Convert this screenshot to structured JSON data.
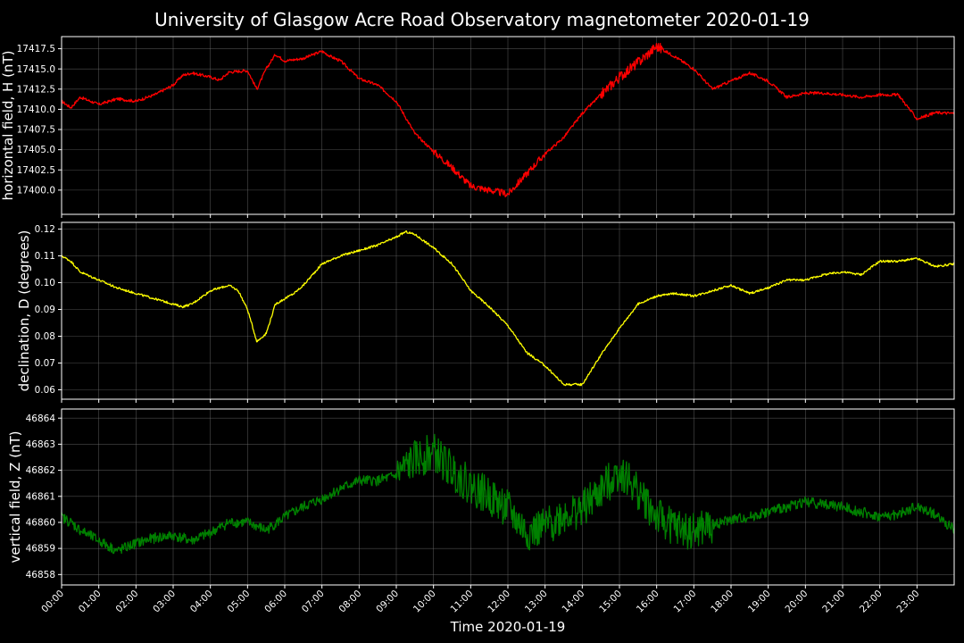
{
  "chart_data": {
    "type": "line",
    "title": "University of Glasgow Acre Road Observatory magnetometer 2020-01-19",
    "xlabel": "Time 2020-01-19",
    "grid": true,
    "x_ticks": [
      "00:00",
      "01:00",
      "02:00",
      "03:00",
      "04:00",
      "05:00",
      "06:00",
      "07:00",
      "08:00",
      "09:00",
      "10:00",
      "11:00",
      "12:00",
      "13:00",
      "14:00",
      "15:00",
      "16:00",
      "17:00",
      "18:00",
      "19:00",
      "20:00",
      "21:00",
      "22:00",
      "23:00"
    ],
    "xlim": [
      0,
      24
    ],
    "panels": [
      {
        "ylabel": "horizontal field, H (nT)",
        "color": "#ff0000",
        "ylim": [
          17397.0,
          17419.0
        ],
        "y_ticks": [
          "17400.0",
          "17402.5",
          "17405.0",
          "17407.5",
          "17410.0",
          "17412.5",
          "17415.0",
          "17417.5"
        ],
        "x": [
          0,
          0.25,
          0.5,
          1,
          1.5,
          2,
          2.5,
          3,
          3.25,
          3.5,
          4,
          4.25,
          4.5,
          5,
          5.25,
          5.5,
          5.75,
          6,
          6.5,
          7,
          7.25,
          7.5,
          8,
          8.5,
          9,
          9.5,
          10,
          10.5,
          11,
          11.5,
          12,
          12.5,
          13,
          13.5,
          14,
          14.5,
          15,
          15.5,
          15.75,
          16,
          16.5,
          17,
          17.5,
          18,
          18.5,
          19,
          19.5,
          20,
          20.5,
          21,
          21.5,
          22,
          22.5,
          23,
          23.5,
          24
        ],
        "y": [
          17411,
          17410.2,
          17411.5,
          17410.6,
          17411.3,
          17411,
          17411.8,
          17413,
          17414.2,
          17414.5,
          17414,
          17413.6,
          17414.6,
          17414.8,
          17412.5,
          17415,
          17416.8,
          17416,
          17416.3,
          17417.2,
          17416.5,
          17416,
          17413.8,
          17413,
          17411,
          17407,
          17404.8,
          17402.8,
          17400.5,
          17400,
          17399.5,
          17402,
          17404.5,
          17406.5,
          17409.5,
          17411.8,
          17414,
          17415.8,
          17416.8,
          17417.8,
          17416.5,
          17415,
          17412.5,
          17413.5,
          17414.5,
          17413.5,
          17411.5,
          17412,
          17412,
          17411.8,
          17411.5,
          17411.8,
          17411.8,
          17408.8,
          17409.6,
          17409.5
        ]
      },
      {
        "ylabel": "declination, D (degrees)",
        "color": "#ffff00",
        "ylim": [
          0.0565,
          0.1225
        ],
        "y_ticks": [
          "0.06",
          "0.07",
          "0.08",
          "0.09",
          "0.10",
          "0.11",
          "0.12"
        ],
        "x": [
          0,
          0.25,
          0.5,
          1,
          1.5,
          2,
          2.5,
          3,
          3.25,
          3.5,
          4,
          4.5,
          4.75,
          5,
          5.25,
          5.5,
          5.75,
          6,
          6.25,
          6.5,
          7,
          7.5,
          8,
          8.5,
          9,
          9.25,
          9.5,
          10,
          10.5,
          11,
          11.5,
          12,
          12.5,
          13,
          13.5,
          14,
          14.5,
          15,
          15.5,
          16,
          16.5,
          17,
          17.5,
          18,
          18.5,
          19,
          19.5,
          20,
          20.5,
          21,
          21.5,
          22,
          22.5,
          23,
          23.5,
          24
        ],
        "y": [
          0.11,
          0.108,
          0.104,
          0.101,
          0.098,
          0.096,
          0.094,
          0.092,
          0.091,
          0.092,
          0.097,
          0.099,
          0.097,
          0.09,
          0.078,
          0.081,
          0.092,
          0.094,
          0.096,
          0.099,
          0.107,
          0.11,
          0.112,
          0.114,
          0.117,
          0.119,
          0.118,
          0.113,
          0.107,
          0.097,
          0.091,
          0.084,
          0.074,
          0.069,
          0.062,
          0.062,
          0.073,
          0.083,
          0.092,
          0.095,
          0.096,
          0.095,
          0.097,
          0.099,
          0.096,
          0.098,
          0.101,
          0.101,
          0.103,
          0.104,
          0.103,
          0.108,
          0.108,
          0.109,
          0.106,
          0.107
        ]
      },
      {
        "ylabel": "vertical field, Z (nT)",
        "color": "#008000",
        "ylim": [
          46857.6,
          46864.35
        ],
        "y_ticks": [
          "46858",
          "46859",
          "46860",
          "46861",
          "46862",
          "46863",
          "46864"
        ],
        "x": [
          0,
          0.25,
          0.5,
          1,
          1.5,
          2,
          2.5,
          3,
          3.5,
          4,
          4.5,
          5,
          5.5,
          6,
          6.5,
          7,
          7.5,
          8,
          8.5,
          9,
          9.5,
          10,
          10.5,
          11,
          11.5,
          12,
          12.5,
          13,
          13.5,
          14,
          14.5,
          15,
          15.5,
          16,
          16.5,
          17,
          17.5,
          18,
          18.5,
          19,
          19.5,
          20,
          20.5,
          21,
          21.5,
          22,
          22.5,
          23,
          23.5,
          24
        ],
        "y": [
          46860.2,
          46860,
          46859.7,
          46859.3,
          46858.9,
          46859.2,
          46859.4,
          46859.5,
          46859.3,
          46859.6,
          46860,
          46860,
          46859.7,
          46860.2,
          46860.6,
          46860.9,
          46861.3,
          46861.6,
          46861.6,
          46861.8,
          46862.4,
          46862.7,
          46862.0,
          46861.4,
          46861.0,
          46860.5,
          46859.6,
          46859.8,
          46860.3,
          46860.5,
          46861.2,
          46862.0,
          46861.2,
          46860.2,
          46859.8,
          46859.6,
          46859.9,
          46860.1,
          46860.2,
          46860.4,
          46860.6,
          46860.8,
          46860.7,
          46860.6,
          46860.4,
          46860.2,
          46860.3,
          46860.6,
          46860.3,
          46859.7
        ]
      }
    ]
  }
}
